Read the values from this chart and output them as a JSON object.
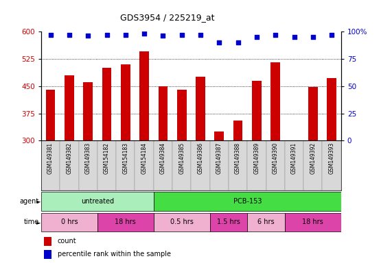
{
  "title": "GDS3954 / 225219_at",
  "samples": [
    "GSM149381",
    "GSM149382",
    "GSM149383",
    "GSM154182",
    "GSM154183",
    "GSM154184",
    "GSM149384",
    "GSM149385",
    "GSM149386",
    "GSM149387",
    "GSM149388",
    "GSM149389",
    "GSM149390",
    "GSM149391",
    "GSM149392",
    "GSM149393"
  ],
  "bar_values": [
    440,
    480,
    460,
    500,
    510,
    545,
    450,
    440,
    475,
    325,
    355,
    465,
    515,
    300,
    448,
    472
  ],
  "percentile_values": [
    97,
    97,
    96,
    97,
    97,
    98,
    96,
    97,
    97,
    90,
    90,
    95,
    97,
    95,
    95,
    97
  ],
  "bar_color": "#cc0000",
  "dot_color": "#0000cc",
  "ymin": 300,
  "ymax": 600,
  "yticks": [
    300,
    375,
    450,
    525,
    600
  ],
  "right_yticks": [
    0,
    25,
    50,
    75,
    100
  ],
  "agent_groups": [
    {
      "label": "untreated",
      "start": 0,
      "end": 6,
      "color": "#aaeebb"
    },
    {
      "label": "PCB-153",
      "start": 6,
      "end": 16,
      "color": "#44dd44"
    }
  ],
  "time_groups": [
    {
      "label": "0 hrs",
      "start": 0,
      "end": 3,
      "color": "#f0b0d0"
    },
    {
      "label": "18 hrs",
      "start": 3,
      "end": 6,
      "color": "#dd44aa"
    },
    {
      "label": "0.5 hrs",
      "start": 6,
      "end": 9,
      "color": "#f0b0d0"
    },
    {
      "label": "1.5 hrs",
      "start": 9,
      "end": 11,
      "color": "#dd44aa"
    },
    {
      "label": "6 hrs",
      "start": 11,
      "end": 13,
      "color": "#f0b0d0"
    },
    {
      "label": "18 hrs",
      "start": 13,
      "end": 16,
      "color": "#dd44aa"
    }
  ],
  "legend_count_label": "count",
  "legend_pct_label": "percentile rank within the sample",
  "background_color": "#ffffff",
  "tick_label_color_left": "#cc0000",
  "tick_label_color_right": "#0000cc",
  "xtick_bg_color": "#d8d8d8",
  "chart_bg_color": "#ffffff"
}
